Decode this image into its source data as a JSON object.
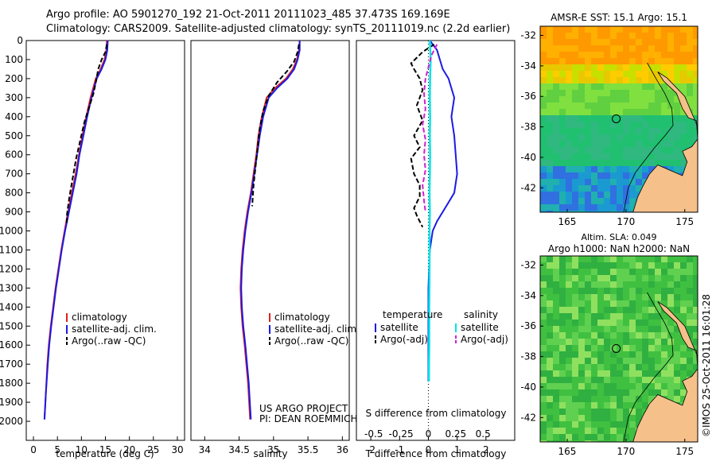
{
  "header": {
    "line1": "Argo profile: AO 5901270_192 21-Oct-2011 20111023_485 37.473S 169.169E",
    "line2": "Climatology: CARS2009. Satellite-adjusted climatology: synTS_20111019.nc (2.2d earlier)"
  },
  "colors": {
    "climatology": "#e02020",
    "satellite_temp": "#1a1ae6",
    "argo_temp": "#000000",
    "satellite_sal": "#00e5e5",
    "argo_sal": "#d020d0"
  },
  "chart_data": [
    {
      "type": "line",
      "name": "temperature_profile",
      "xlabel": "temperature (deg C)",
      "xlim": [
        -1.5,
        31.5
      ],
      "xticks": [
        0,
        5,
        10,
        15,
        20,
        25,
        30
      ],
      "ylim": [
        0,
        2100
      ],
      "yticks": [
        0,
        100,
        200,
        300,
        400,
        500,
        600,
        700,
        800,
        900,
        1000,
        1100,
        1200,
        1300,
        1400,
        1500,
        1600,
        1700,
        1800,
        1900,
        2000
      ],
      "legend": [
        "climatology",
        "satellite-adj. clim.",
        "Argo(..raw -QC)"
      ],
      "series": [
        {
          "name": "climatology",
          "x": [
            15.3,
            15.2,
            14.8,
            14.0,
            13.0,
            11.9,
            11.0,
            10.2,
            9.5,
            8.8,
            8.0,
            7.2,
            6.5,
            5.8,
            5.2,
            4.6,
            4.1,
            3.6,
            3.2,
            2.9,
            2.6,
            2.3
          ],
          "y": [
            0,
            50,
            100,
            150,
            200,
            300,
            400,
            500,
            600,
            700,
            800,
            900,
            1000,
            1100,
            1200,
            1300,
            1400,
            1500,
            1600,
            1700,
            1850,
            1990
          ]
        },
        {
          "name": "satellite-adj. clim.",
          "x": [
            15.5,
            15.4,
            15.0,
            14.2,
            13.2,
            12.1,
            11.2,
            10.4,
            9.6,
            9.0,
            8.2,
            7.4,
            6.6,
            5.9,
            5.3,
            4.7,
            4.2,
            3.7,
            3.3,
            3.0,
            2.6,
            2.3
          ],
          "y": [
            0,
            50,
            100,
            150,
            200,
            300,
            400,
            500,
            600,
            700,
            800,
            900,
            1000,
            1100,
            1200,
            1300,
            1400,
            1500,
            1600,
            1700,
            1850,
            1990
          ]
        },
        {
          "name": "Argo(..raw -QC)",
          "x": [
            15.3,
            15.0,
            14.2,
            13.5,
            13.0,
            12.5,
            11.6,
            10.6,
            9.8,
            8.9,
            8.2,
            7.5,
            7.0,
            6.9
          ],
          "y": [
            20,
            60,
            100,
            150,
            220,
            280,
            350,
            430,
            520,
            620,
            720,
            820,
            910,
            970
          ]
        }
      ]
    },
    {
      "type": "line",
      "name": "salinity_profile",
      "xlabel": "salinity",
      "xlim": [
        33.8,
        36.1
      ],
      "xticks": [
        34,
        34.5,
        35,
        35.5,
        36
      ],
      "ylim": [
        0,
        2100
      ],
      "legend": [
        "climatology",
        "satellite-adj. clim.",
        "Argo(..raw -QC)"
      ],
      "annotations": [
        "US ARGO PROJECT",
        "PI: DEAN ROEMMICH"
      ],
      "series": [
        {
          "name": "climatology",
          "x": [
            35.38,
            35.37,
            35.34,
            35.28,
            35.18,
            35.02,
            34.9,
            34.83,
            34.78,
            34.75,
            34.71,
            34.67,
            34.62,
            34.58,
            34.55,
            34.53,
            34.52,
            34.53,
            34.55,
            34.58,
            34.63,
            34.66
          ],
          "y": [
            0,
            50,
            100,
            150,
            200,
            250,
            300,
            400,
            500,
            600,
            700,
            800,
            900,
            1000,
            1100,
            1200,
            1300,
            1400,
            1500,
            1600,
            1800,
            1990
          ]
        },
        {
          "name": "satellite-adj. clim.",
          "x": [
            35.38,
            35.38,
            35.35,
            35.3,
            35.2,
            35.05,
            34.93,
            34.85,
            34.8,
            34.76,
            34.72,
            34.68,
            34.63,
            34.59,
            34.56,
            34.54,
            34.53,
            34.54,
            34.56,
            34.59,
            34.64,
            34.67
          ],
          "y": [
            0,
            50,
            100,
            150,
            200,
            250,
            300,
            400,
            500,
            600,
            700,
            800,
            900,
            1000,
            1100,
            1200,
            1300,
            1400,
            1500,
            1600,
            1800,
            1990
          ]
        },
        {
          "name": "Argo(..raw -QC)",
          "x": [
            35.37,
            35.35,
            35.3,
            35.2,
            35.05,
            34.93,
            34.85,
            34.8,
            34.77,
            34.74,
            34.71,
            34.69
          ],
          "y": [
            20,
            60,
            110,
            160,
            220,
            290,
            370,
            460,
            560,
            660,
            760,
            870
          ]
        }
      ]
    },
    {
      "type": "line",
      "name": "difference_profile",
      "xlabel_bottom": "T difference from climatology",
      "xlabel_top": "S difference from climatology",
      "xlim": [
        -2.5,
        3.0
      ],
      "xticks_bottom": [
        -2,
        -1,
        0,
        1,
        2
      ],
      "xticklabels_top": [
        "-0.5",
        "-0.25",
        "0",
        "0.25",
        "0.5"
      ],
      "ylim": [
        0,
        2100
      ],
      "legend_temperature": {
        "title": "temperature",
        "items": [
          "satellite",
          "Argo(-adj)"
        ]
      },
      "legend_salinity": {
        "title": "salinity",
        "items": [
          "satellite",
          "Argo(-adj)"
        ]
      },
      "series": [
        {
          "name": "temperature satellite",
          "x": [
            0.05,
            0.3,
            0.4,
            0.5,
            0.7,
            0.9,
            0.8,
            0.9,
            0.95,
            1.0,
            0.9,
            0.7,
            0.5,
            0.3,
            0.15,
            0.05,
            0.0,
            0.0,
            0.0,
            0.0
          ],
          "y": [
            0,
            50,
            100,
            150,
            200,
            300,
            400,
            500,
            600,
            700,
            800,
            850,
            900,
            950,
            1000,
            1100,
            1300,
            1500,
            1700,
            1790
          ]
        },
        {
          "name": "temperature Argo(-adj)",
          "x": [
            0.2,
            -0.2,
            -0.6,
            -0.5,
            -0.3,
            -0.2,
            -0.4,
            -0.2,
            -0.5,
            -0.3,
            -0.6,
            -0.5,
            -0.3,
            -0.3,
            -0.5,
            -0.4,
            -0.2
          ],
          "y": [
            20,
            60,
            120,
            150,
            200,
            260,
            340,
            420,
            500,
            560,
            620,
            700,
            760,
            820,
            880,
            920,
            980
          ]
        },
        {
          "name": "salinity satellite",
          "x": [
            0.05,
            0.08,
            0.06,
            0.05,
            0.06,
            0.05,
            0.06,
            0.05,
            0.04,
            0.05,
            0.04,
            0.04,
            0.03,
            0.03,
            0.02,
            0.02
          ],
          "y": [
            0,
            100,
            200,
            300,
            400,
            500,
            600,
            700,
            800,
            900,
            1000,
            1200,
            1400,
            1600,
            1700,
            1790
          ]
        },
        {
          "name": "salinity Argo(-adj)",
          "x": [
            0.3,
            0.1,
            0.0,
            -0.1,
            -0.15,
            -0.1,
            -0.2,
            -0.1,
            -0.15,
            -0.1,
            -0.2,
            -0.15,
            -0.1
          ],
          "y": [
            20,
            80,
            140,
            200,
            280,
            360,
            440,
            520,
            600,
            680,
            760,
            840,
            900
          ]
        }
      ]
    },
    {
      "type": "heatmap",
      "name": "sst_map",
      "title": "AMSR-E SST: 15.1 Argo: 15.1",
      "xticks": [
        165,
        170,
        175
      ],
      "yticks": [
        -32,
        -34,
        -36,
        -38,
        -40,
        -42
      ],
      "marker": {
        "lon": 169.169,
        "lat": -37.473
      }
    },
    {
      "type": "heatmap",
      "name": "sla_map",
      "title_line1": "Altim. SLA: 0.049",
      "title_line2": "Argo h1000: NaN h2000: NaN",
      "xticks": [
        165,
        170,
        175
      ],
      "yticks": [
        -32,
        -34,
        -36,
        -38,
        -40,
        -42
      ],
      "marker": {
        "lon": 169.169,
        "lat": -37.473
      }
    }
  ],
  "credit": "©IMOS 25-Oct-2011 16:01:28"
}
